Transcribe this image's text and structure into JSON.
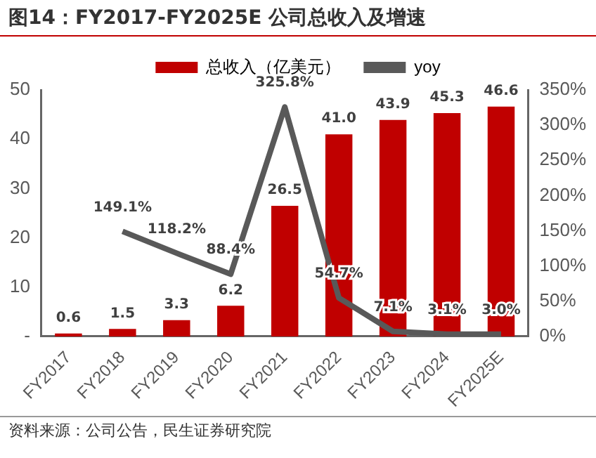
{
  "chart_data": {
    "type": "bar",
    "title": "图14：FY2017-FY2025E 公司总收入及增速",
    "categories": [
      "FY2017",
      "FY2018",
      "FY2019",
      "FY2020",
      "FY2021",
      "FY2022",
      "FY2023",
      "FY2024",
      "FY2025E"
    ],
    "series": [
      {
        "name": "总收入（亿美元）",
        "color": "#c00000",
        "values": [
          0.6,
          1.5,
          3.3,
          6.2,
          26.5,
          41.0,
          43.9,
          45.3,
          46.6
        ],
        "value_labels": [
          "0.6",
          "1.5",
          "3.3",
          "6.2",
          "26.5",
          "41.0",
          "43.9",
          "45.3",
          "46.6"
        ]
      },
      {
        "name": "yoy",
        "type": "line",
        "axis": "y2",
        "color": "#595959",
        "values": [
          null,
          149.1,
          118.2,
          88.4,
          325.8,
          54.7,
          7.1,
          3.1,
          3.0
        ],
        "value_labels": [
          null,
          "149.1%",
          "118.2%",
          "88.4%",
          "325.8%",
          "54.7%",
          "7.1%",
          "3.1%",
          "3.0%"
        ]
      }
    ],
    "ylim": [
      0,
      50
    ],
    "yticks": [
      {
        "value": 0,
        "label": "-"
      },
      10,
      20,
      30,
      40,
      50
    ],
    "y2lim": [
      0,
      350
    ],
    "y2ticks": [
      {
        "value": 0,
        "label": "0%"
      },
      {
        "value": 50,
        "label": "50%"
      },
      {
        "value": 100,
        "label": "100%"
      },
      {
        "value": 150,
        "label": "150%"
      },
      {
        "value": 200,
        "label": "200%"
      },
      {
        "value": 250,
        "label": "250%"
      },
      {
        "value": 300,
        "label": "300%"
      },
      {
        "value": 350,
        "label": "350%"
      }
    ],
    "grid": false,
    "legend": "top",
    "marker": "none",
    "annotations": [
      "资料来源：公司公告，民生证券研究院"
    ]
  }
}
